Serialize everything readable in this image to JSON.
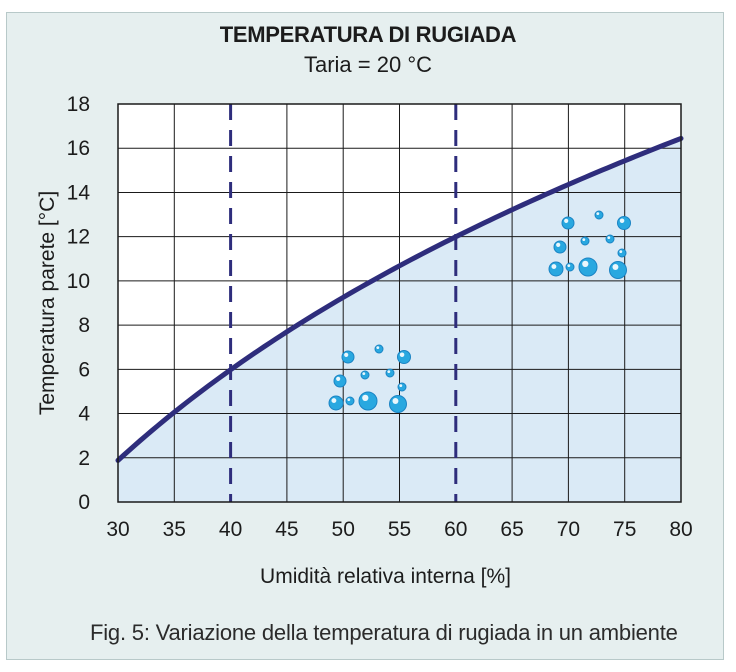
{
  "chart_data": {
    "type": "line",
    "title": "TEMPERATURA DI RUGIADA",
    "subtitle": "Taria = 20 °C",
    "xlabel": "Umidità relativa interna [%]",
    "ylabel": "Temperatura parete [°C]",
    "xlim": [
      30,
      80
    ],
    "ylim": [
      0,
      18
    ],
    "x_ticks": [
      30,
      35,
      40,
      45,
      50,
      55,
      60,
      65,
      70,
      75,
      80
    ],
    "y_ticks": [
      0,
      2,
      4,
      6,
      8,
      10,
      12,
      14,
      16,
      18
    ],
    "grid": true,
    "reference_lines_x": [
      40,
      60
    ],
    "series": [
      {
        "x": [
          30,
          35,
          40,
          45,
          50,
          55,
          60,
          65,
          70,
          75,
          80
        ],
        "values": [
          1.9,
          4.1,
          6.0,
          7.7,
          9.3,
          10.7,
          12.0,
          13.2,
          14.4,
          15.4,
          16.4
        ]
      }
    ],
    "colors": {
      "curve": "#2e2d7c",
      "fill": "#daeaf6",
      "grid": "#1a1a1a",
      "drops": "#29a8e0",
      "panel": "#e6efef"
    }
  },
  "caption": "Fig. 5: Variazione della temperatura di rugiada in un ambiente"
}
